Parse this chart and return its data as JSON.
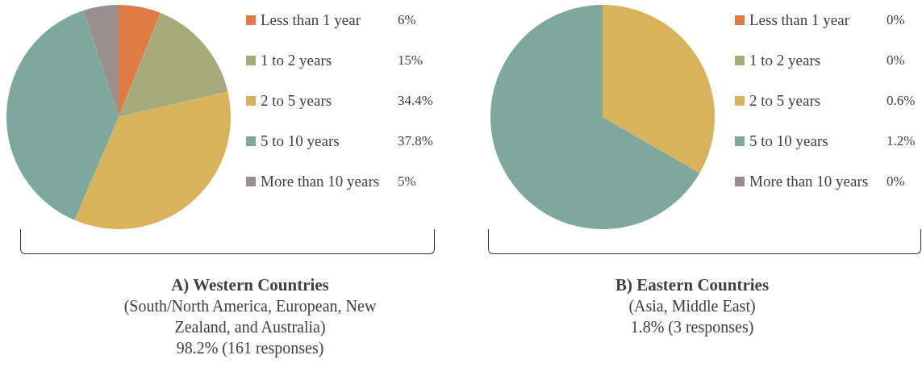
{
  "chart_data": [
    {
      "type": "pie",
      "title": "A) Western Countries",
      "subtitle": "(South/North America, European, New Zealand, and Australia)",
      "annotations": [
        "98.2% (161 responses)"
      ],
      "categories": [
        "Less than 1 year",
        "1 to 2 years",
        "2 to 5 years",
        "5 to 10 years",
        "More than 10 years"
      ],
      "values": [
        6,
        15,
        34.4,
        37.8,
        5
      ],
      "value_labels": [
        "6%",
        "15%",
        "34.4%",
        "37.8%",
        "5%"
      ],
      "colors": [
        "#e07b45",
        "#a5ab7b",
        "#d9b25c",
        "#7ea89c",
        "#9a8f8f"
      ],
      "legend": "right"
    },
    {
      "type": "pie",
      "title": "B) Eastern Countries",
      "subtitle": "(Asia, Middle East)",
      "annotations": [
        "1.8% (3 responses)"
      ],
      "categories": [
        "Less than 1 year",
        "1 to 2 years",
        "2 to 5 years",
        "5 to 10 years",
        "More than 10 years"
      ],
      "values": [
        0,
        0,
        0.6,
        1.2,
        0
      ],
      "value_labels": [
        "0%",
        "0%",
        "0.6%",
        "1.2%",
        "0%"
      ],
      "colors": [
        "#e07b45",
        "#a5ab7b",
        "#d9b25c",
        "#7ea89c",
        "#9a8f8f"
      ],
      "legend": "right"
    }
  ]
}
